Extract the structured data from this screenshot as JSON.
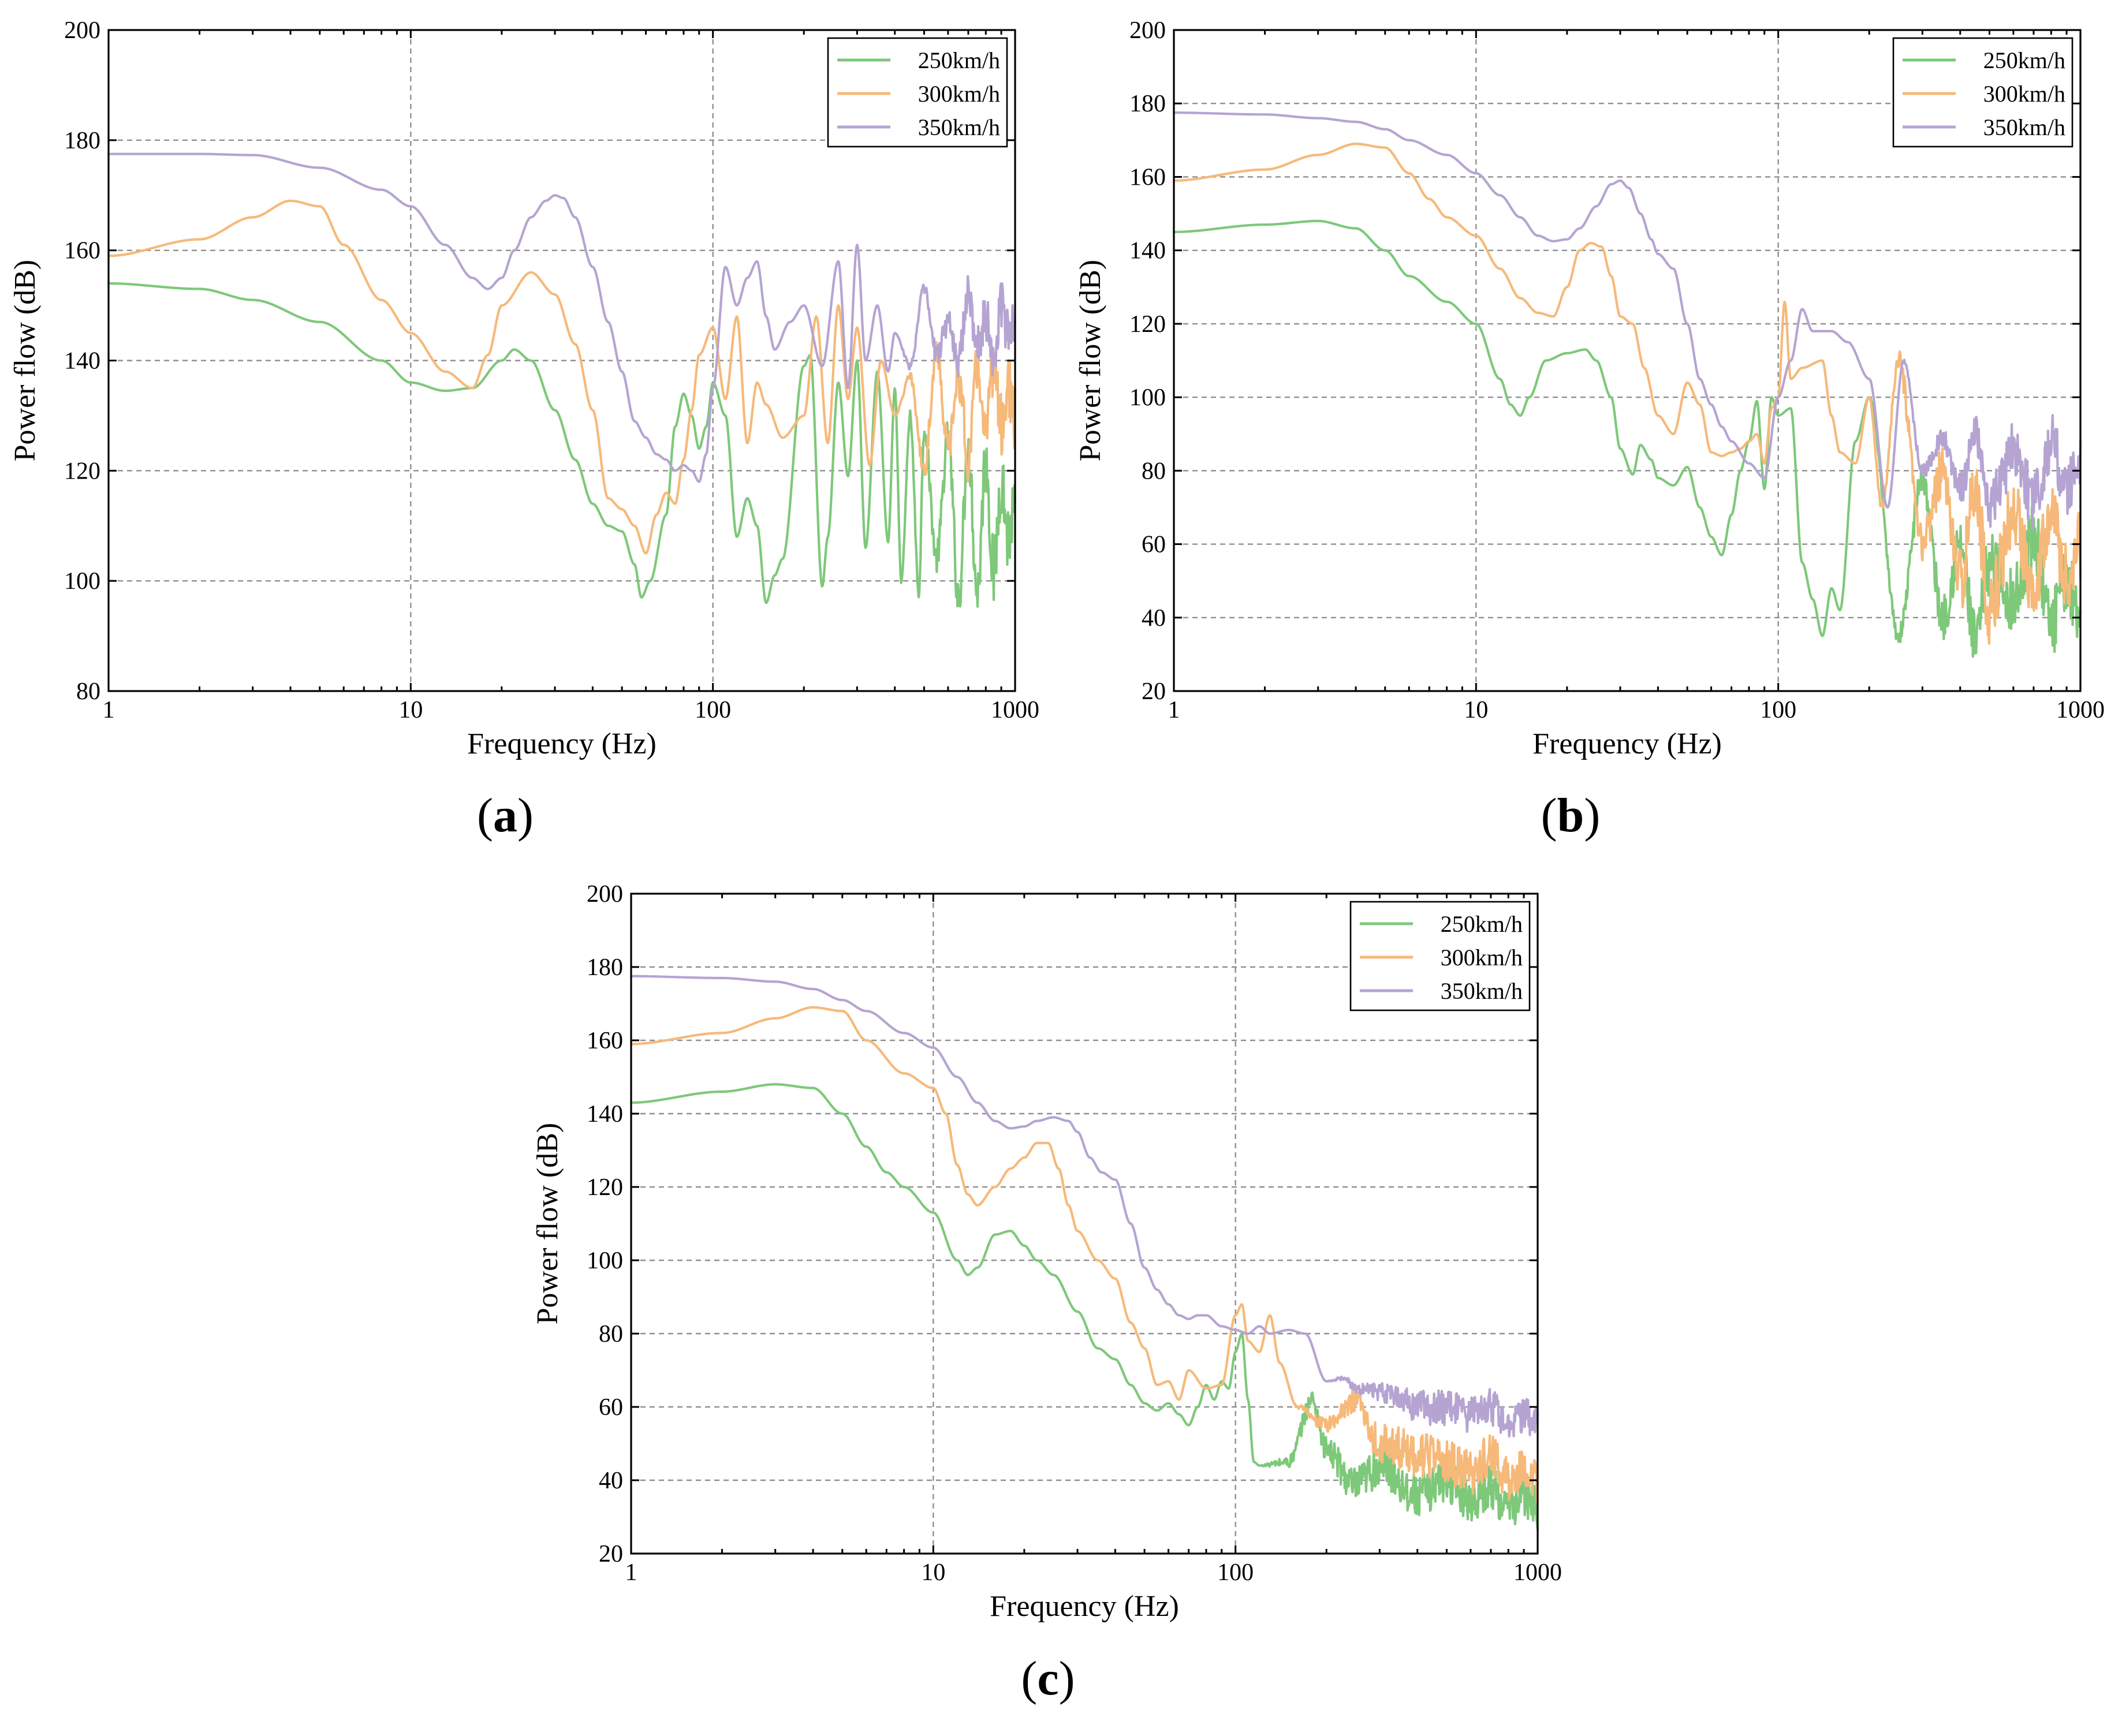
{
  "colors": {
    "s250": "#7ec87a",
    "s300": "#f6b97a",
    "s350": "#b5a4d2"
  },
  "chart_data": [
    {
      "id": "a",
      "type": "line",
      "label": "(a)",
      "xlabel": "Frequency (Hz)",
      "ylabel": "Power flow (dB)",
      "xscale": "log",
      "xlim": [
        1,
        1000
      ],
      "ylim": [
        80,
        200
      ],
      "xticks": [
        1,
        10,
        100,
        1000
      ],
      "xtick_labels": [
        "1",
        "10",
        "100",
        "1000"
      ],
      "yticks": [
        80,
        100,
        120,
        140,
        160,
        180,
        200
      ],
      "ytick_labels": [
        "80",
        "100",
        "120",
        "140",
        "160",
        "180",
        "200"
      ],
      "grid": true,
      "legend_position": "top-right",
      "series": [
        {
          "name": "250km/h",
          "color_key": "s250",
          "x": [
            1,
            2,
            3,
            5,
            8,
            10,
            13,
            16,
            20,
            22,
            25,
            30,
            35,
            40,
            45,
            50,
            55,
            58,
            62,
            70,
            75,
            80,
            85,
            90,
            95,
            100,
            110,
            120,
            130,
            140,
            150,
            160,
            170,
            200,
            210,
            230,
            240,
            260,
            280,
            300,
            320,
            350,
            380,
            400,
            420,
            450,
            480,
            500,
            550,
            600,
            650,
            700,
            750,
            800,
            850,
            900,
            950,
            1000
          ],
          "y": [
            154,
            153,
            151,
            147,
            140,
            136,
            134.5,
            135,
            140,
            142,
            140,
            131,
            122,
            114,
            110,
            109,
            103,
            97,
            100,
            112,
            128,
            134,
            130,
            124,
            128,
            136,
            130,
            108,
            115,
            110,
            96,
            101,
            104,
            139,
            141,
            99,
            108,
            136,
            119,
            140,
            106,
            138,
            107,
            135,
            100,
            130,
            98,
            128,
            104,
            126,
            97,
            124,
            98,
            122,
            101,
            119,
            108,
            113
          ],
          "noise_from": 400,
          "noise_amp": 7
        },
        {
          "name": "300km/h",
          "color_key": "s300",
          "x": [
            1,
            2,
            3,
            4,
            5,
            6,
            8,
            10,
            13,
            16,
            18,
            20,
            25,
            30,
            35,
            40,
            45,
            50,
            55,
            60,
            65,
            70,
            75,
            80,
            85,
            90,
            100,
            110,
            120,
            130,
            140,
            150,
            170,
            200,
            220,
            240,
            260,
            280,
            300,
            330,
            360,
            400,
            450,
            500,
            550,
            600,
            650,
            700,
            750,
            800,
            850,
            900,
            950,
            1000
          ],
          "y": [
            159,
            162,
            166,
            169,
            168,
            161,
            151,
            145,
            138,
            135,
            141,
            150,
            156,
            152,
            143,
            131,
            115,
            113,
            110,
            105,
            112,
            116,
            114,
            122,
            131,
            141,
            146,
            133,
            148,
            125,
            136,
            132,
            126,
            130,
            148,
            125,
            150,
            133,
            146,
            121,
            140,
            130,
            137,
            120,
            142,
            124,
            137,
            122,
            139,
            126,
            140,
            128,
            135,
            129
          ],
          "noise_from": 400,
          "noise_amp": 6
        },
        {
          "name": "350km/h",
          "color_key": "s350",
          "x": [
            1,
            2,
            3,
            5,
            8,
            10,
            13,
            16,
            18,
            20,
            22,
            25,
            28,
            30,
            32,
            35,
            40,
            45,
            50,
            55,
            60,
            65,
            70,
            75,
            80,
            85,
            90,
            95,
            100,
            110,
            120,
            130,
            140,
            150,
            160,
            180,
            200,
            230,
            260,
            280,
            300,
            320,
            350,
            380,
            400,
            450,
            500,
            550,
            600,
            650,
            700,
            750,
            800,
            850,
            900,
            950,
            1000
          ],
          "y": [
            177.5,
            177.5,
            177.3,
            175,
            171,
            168,
            161,
            155,
            153,
            155,
            160,
            166,
            169,
            170,
            169.5,
            166,
            157,
            147,
            138,
            129,
            126,
            123,
            122,
            120,
            121,
            120,
            118,
            123,
            135,
            157,
            150,
            155,
            158,
            148,
            142,
            147,
            150,
            139,
            158,
            135,
            161,
            140,
            150,
            138,
            145,
            139,
            153,
            141,
            147,
            140,
            152,
            143,
            148,
            141,
            150,
            144,
            148
          ],
          "noise_from": 400,
          "noise_amp": 5
        }
      ]
    },
    {
      "id": "b",
      "type": "line",
      "label": "(b)",
      "xlabel": "Frequency (Hz)",
      "ylabel": "Power flow (dB)",
      "xscale": "log",
      "xlim": [
        1,
        1000
      ],
      "ylim": [
        20,
        200
      ],
      "xticks": [
        1,
        10,
        100,
        1000
      ],
      "xtick_labels": [
        "1",
        "10",
        "100",
        "1000"
      ],
      "yticks": [
        20,
        40,
        60,
        80,
        100,
        120,
        140,
        160,
        180,
        200
      ],
      "ytick_labels": [
        "20",
        "40",
        "60",
        "80",
        "100",
        "120",
        "140",
        "160",
        "180",
        "200"
      ],
      "grid": true,
      "legend_position": "top-right",
      "series": [
        {
          "name": "250km/h",
          "color_key": "s250",
          "x": [
            1,
            2,
            3,
            4,
            5,
            6,
            8,
            10,
            12,
            13,
            14,
            15,
            17,
            20,
            23,
            25,
            28,
            30,
            33,
            35,
            38,
            40,
            45,
            50,
            55,
            60,
            65,
            70,
            75,
            80,
            85,
            90,
            95,
            100,
            110,
            120,
            130,
            140,
            150,
            160,
            180,
            200,
            250,
            300,
            350,
            400,
            450,
            500,
            600,
            700,
            800,
            900,
            1000
          ],
          "y": [
            145,
            147,
            148,
            146,
            140,
            133,
            126,
            120,
            105,
            98,
            95,
            100,
            110,
            112,
            113,
            110,
            100,
            86,
            79,
            87,
            83,
            78,
            76,
            81,
            70,
            62,
            57,
            68,
            80,
            88,
            99,
            75,
            100,
            95,
            97,
            55,
            45,
            35,
            48,
            42,
            88,
            100,
            35,
            78,
            40,
            60,
            32,
            55,
            45,
            62,
            38,
            50,
            42
          ],
          "noise_from": 200,
          "noise_amp": 9
        },
        {
          "name": "300km/h",
          "color_key": "s300",
          "x": [
            1,
            2,
            3,
            4,
            5,
            6,
            7,
            8,
            10,
            12,
            14,
            16,
            18,
            20,
            22,
            24,
            26,
            28,
            30,
            33,
            36,
            40,
            45,
            50,
            55,
            60,
            65,
            70,
            75,
            80,
            85,
            90,
            95,
            100,
            105,
            110,
            120,
            140,
            150,
            160,
            180,
            200,
            220,
            250,
            300,
            350,
            400,
            450,
            500,
            600,
            700,
            800,
            900,
            1000
          ],
          "y": [
            159,
            162,
            166,
            169,
            168,
            161,
            154,
            149,
            144,
            135,
            127,
            123,
            122,
            130,
            140,
            142,
            141,
            133,
            122,
            120,
            108,
            95,
            90,
            104,
            98,
            85,
            84,
            85,
            86,
            88,
            90,
            82,
            97,
            100,
            126,
            105,
            108,
            110,
            95,
            85,
            82,
            100,
            70,
            110,
            60,
            80,
            50,
            75,
            42,
            68,
            50,
            70,
            50,
            60
          ],
          "noise_from": 200,
          "noise_amp": 10
        },
        {
          "name": "350km/h",
          "color_key": "s350",
          "x": [
            1,
            2,
            3,
            4,
            5,
            6,
            8,
            10,
            12,
            14,
            16,
            18,
            20,
            22,
            25,
            28,
            30,
            32,
            35,
            38,
            40,
            45,
            50,
            55,
            60,
            65,
            70,
            80,
            90,
            100,
            110,
            120,
            130,
            150,
            170,
            200,
            230,
            260,
            300,
            350,
            400,
            450,
            500,
            600,
            700,
            800,
            900,
            1000
          ],
          "y": [
            177.5,
            177,
            176,
            175,
            173,
            170,
            166,
            161,
            155,
            149,
            144,
            142.5,
            143,
            146,
            152,
            158,
            159,
            157,
            150,
            143,
            139,
            135,
            120,
            105,
            98,
            92,
            88,
            82,
            78,
            100,
            110,
            124,
            118,
            118,
            115,
            105,
            70,
            110,
            80,
            88,
            75,
            90,
            70,
            85,
            72,
            88,
            75,
            82
          ],
          "noise_from": 250,
          "noise_amp": 8
        }
      ]
    },
    {
      "id": "c",
      "type": "line",
      "label": "(c)",
      "xlabel": "Frequency (Hz)",
      "ylabel": "Power flow (dB)",
      "xscale": "log",
      "xlim": [
        1,
        1000
      ],
      "ylim": [
        20,
        200
      ],
      "xticks": [
        1,
        10,
        100,
        1000
      ],
      "xtick_labels": [
        "1",
        "10",
        "100",
        "1000"
      ],
      "yticks": [
        20,
        40,
        60,
        80,
        100,
        120,
        140,
        160,
        180,
        200
      ],
      "ytick_labels": [
        "20",
        "40",
        "60",
        "80",
        "100",
        "120",
        "140",
        "160",
        "180",
        "200"
      ],
      "grid": true,
      "legend_position": "top-right",
      "series": [
        {
          "name": "250km/h",
          "color_key": "s250",
          "x": [
            1,
            2,
            3,
            4,
            5,
            6,
            7,
            8,
            10,
            12,
            13,
            14,
            16,
            18,
            20,
            22,
            25,
            30,
            35,
            40,
            45,
            50,
            55,
            60,
            65,
            70,
            75,
            80,
            85,
            90,
            95,
            100,
            105,
            110,
            115,
            120,
            150,
            180,
            200,
            250,
            300,
            400,
            500,
            600,
            700,
            800,
            900,
            1000
          ],
          "y": [
            143,
            146,
            148,
            147,
            140,
            131,
            124,
            120,
            113,
            100,
            96,
            98,
            107,
            108,
            104,
            100,
            96,
            86,
            76,
            73,
            66,
            61,
            59,
            61,
            58,
            55,
            60,
            66,
            62,
            67,
            65,
            75,
            80,
            62,
            45,
            44,
            45,
            62,
            48,
            38,
            44,
            36,
            40,
            35,
            38,
            32,
            36,
            32
          ],
          "noise_from": 120,
          "noise_amp": 6
        },
        {
          "name": "300km/h",
          "color_key": "s300",
          "x": [
            1,
            2,
            3,
            4,
            5,
            6,
            8,
            10,
            11,
            12,
            13,
            14,
            16,
            18,
            20,
            22,
            24,
            26,
            28,
            30,
            35,
            40,
            45,
            50,
            55,
            60,
            65,
            70,
            80,
            90,
            100,
            105,
            110,
            120,
            130,
            140,
            160,
            200,
            250,
            300,
            400,
            500,
            600,
            700,
            800,
            900,
            1000
          ],
          "y": [
            159,
            162,
            166,
            169,
            168,
            160,
            151,
            147,
            140,
            126,
            118,
            115,
            120,
            125,
            128,
            132,
            132,
            125,
            115,
            108,
            100,
            95,
            83,
            76,
            66,
            67,
            62,
            70,
            65,
            66,
            85,
            88,
            78,
            75,
            85,
            72,
            60,
            55,
            62,
            50,
            47,
            45,
            42,
            47,
            40,
            44,
            40
          ],
          "noise_from": 150,
          "noise_amp": 6
        },
        {
          "name": "350km/h",
          "color_key": "s350",
          "x": [
            1,
            2,
            3,
            4,
            5,
            6,
            8,
            10,
            12,
            14,
            16,
            18,
            20,
            22,
            25,
            28,
            30,
            33,
            36,
            40,
            45,
            50,
            55,
            60,
            65,
            70,
            75,
            80,
            90,
            100,
            110,
            120,
            130,
            150,
            170,
            200,
            230,
            250,
            300,
            350,
            400,
            500,
            600,
            700,
            800,
            900,
            1000
          ],
          "y": [
            177.5,
            177,
            176,
            174,
            171,
            168,
            162,
            158,
            150,
            143,
            138,
            136,
            136.5,
            138,
            139,
            138,
            135,
            128,
            124,
            122,
            110,
            98,
            92,
            88,
            85,
            84,
            85,
            85,
            82,
            81,
            80,
            82,
            80,
            81,
            80,
            67,
            68,
            65,
            64,
            62,
            60,
            60,
            58,
            60,
            56,
            58,
            55
          ],
          "noise_from": 200,
          "noise_amp": 5
        }
      ]
    }
  ]
}
